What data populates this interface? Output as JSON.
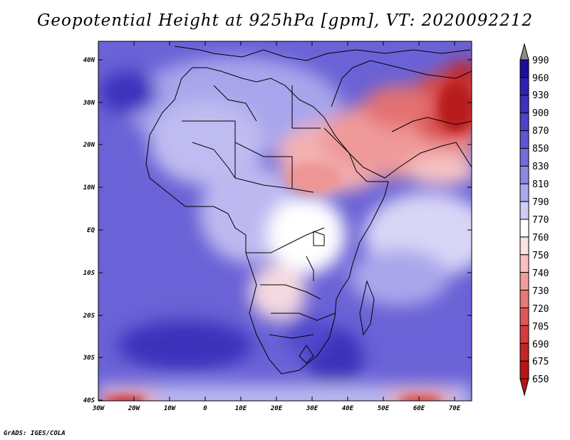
{
  "map": {
    "title": "Geopotential Height at 925hPa [gpm], VT: 2020092212",
    "credit": "GrADS: IGES/COLA",
    "lat_labels": [
      "40N",
      "30N",
      "20N",
      "10N",
      "EQ",
      "10S",
      "20S",
      "30S",
      "40S"
    ],
    "lon_labels": [
      "30W",
      "20W",
      "10W",
      "0",
      "10E",
      "20E",
      "30E",
      "40E",
      "50E",
      "60E",
      "70E"
    ],
    "colorbar": {
      "levels": [
        "990",
        "960",
        "930",
        "900",
        "870",
        "850",
        "830",
        "810",
        "790",
        "770",
        "760",
        "750",
        "740",
        "730",
        "720",
        "705",
        "690",
        "675",
        "650"
      ],
      "colors": [
        "#8b8b8b",
        "#1a0fa0",
        "#2d22b3",
        "#3d31c0",
        "#4c43c8",
        "#5e55d2",
        "#736cdb",
        "#8d88e3",
        "#aba8ec",
        "#cfcdf5",
        "#ffffff",
        "#fde2e2",
        "#f8c0c0",
        "#f09c9c",
        "#e87878",
        "#de5858",
        "#d33c3c",
        "#c42525",
        "#b81414"
      ],
      "upper_arrow": "#8b8b8b",
      "lower_arrow": "#b81414"
    }
  }
}
